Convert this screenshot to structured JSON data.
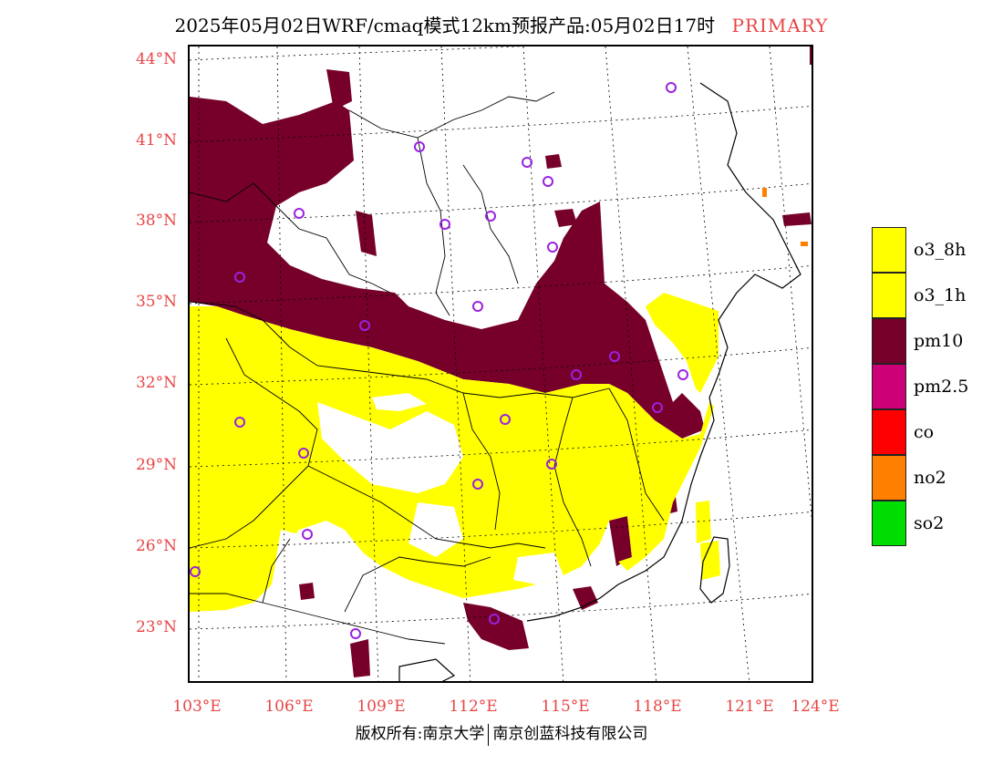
{
  "title": {
    "main": "2025年05月02日WRF/cmaq模式12km预报产品:05月02日17时",
    "tag": "PRIMARY"
  },
  "map": {
    "lat_labels": [
      "44°N",
      "41°N",
      "38°N",
      "35°N",
      "32°N",
      "29°N",
      "26°N",
      "23°N"
    ],
    "lon_labels": [
      "103°E",
      "106°E",
      "109°E",
      "112°E",
      "115°E",
      "118°E",
      "121°E",
      "124°E"
    ],
    "dominant_category": "pm10",
    "colors": {
      "background": "#ffffff",
      "pm10": "#76002a",
      "o3_1h": "#ffff00",
      "station_marker": "#9a22e0",
      "boundary": "#000000",
      "grid": "#000000"
    }
  },
  "legend": {
    "items": [
      {
        "label": "o3_8h",
        "color": "#ffff00"
      },
      {
        "label": "o3_1h",
        "color": "#ffff00"
      },
      {
        "label": "pm10",
        "color": "#76002a"
      },
      {
        "label": "pm2.5",
        "color": "#cc0077"
      },
      {
        "label": "co",
        "color": "#ff0000"
      },
      {
        "label": "no2",
        "color": "#ff7f00"
      },
      {
        "label": "so2",
        "color": "#00dd00"
      }
    ]
  },
  "footer": {
    "left": "版权所有:南京大学",
    "right": "南京创蓝科技有限公司"
  }
}
